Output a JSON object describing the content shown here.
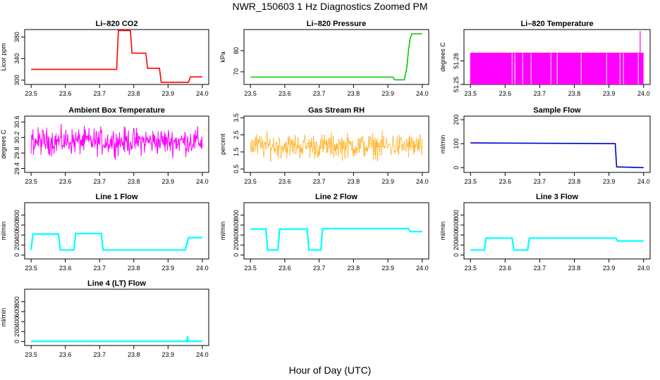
{
  "title": "NWR_150603  1 Hz Diagnostics Zoomed PM",
  "xlabel": "Hour of Day (UTC)",
  "colors": {
    "co2": "#ff0000",
    "pressure": "#00cc00",
    "temperature": "#ff00ff",
    "box_temp": "#ff00ff",
    "rh": "#ffa500",
    "sample_flow": "#0000cc",
    "line_flow": "#00ffff"
  },
  "chart_data": [
    {
      "type": "line",
      "title": "Li–820 CO2",
      "ylabel": "Licor ppm",
      "xlim": [
        23.5,
        24.0
      ],
      "xticks": [
        "23.5",
        "23.6",
        "23.7",
        "23.8",
        "23.9",
        "24.0"
      ],
      "ylim": [
        292,
        394
      ],
      "yticks": [
        300,
        340,
        380
      ],
      "color": "#ff0000",
      "x": [
        23.5,
        23.75,
        23.755,
        23.79,
        23.795,
        23.835,
        23.84,
        23.875,
        23.88,
        23.96,
        23.965,
        24.0
      ],
      "y": [
        320,
        320,
        392,
        392,
        350,
        350,
        322,
        322,
        296,
        296,
        306,
        306
      ]
    },
    {
      "type": "line",
      "title": "Li–820 Pressure",
      "ylabel": "kPa",
      "xlim": [
        23.5,
        24.0
      ],
      "xticks": [
        "23.5",
        "23.6",
        "23.7",
        "23.8",
        "23.9",
        "24.0"
      ],
      "ylim": [
        64,
        90
      ],
      "yticks": [
        70,
        80
      ],
      "color": "#00cc00",
      "x": [
        23.5,
        23.915,
        23.92,
        23.948,
        23.955,
        23.96,
        23.965,
        23.97,
        23.98,
        24.0
      ],
      "y": [
        67.5,
        67.5,
        66.2,
        66.2,
        72,
        80,
        86,
        88,
        88,
        88
      ]
    },
    {
      "type": "area",
      "title": "Li–820 Temperature",
      "ylabel": "degrees C",
      "xlim": [
        23.5,
        24.0
      ],
      "xticks": [
        "23.5",
        "23.6",
        "23.7",
        "23.8",
        "23.9",
        "24.0"
      ],
      "ylim": [
        51.25,
        51.32
      ],
      "yticks": [
        51.25,
        51.28
      ],
      "color": "#ff00ff",
      "band": [
        51.25,
        51.29
      ],
      "spike": {
        "x": 23.99,
        "y": 51.318
      }
    },
    {
      "type": "line",
      "title": "Ambient Box Temperature",
      "ylabel": "degrees C",
      "xlim": [
        23.5,
        24.0
      ],
      "xticks": [
        "23.5",
        "23.6",
        "23.7",
        "23.8",
        "23.9",
        "24.0"
      ],
      "ylim": [
        29.3,
        30.75
      ],
      "yticks": [
        29.4,
        29.8,
        30.2,
        30.6
      ],
      "color": "#ff00ff",
      "center": 30.1,
      "spread": 0.28
    },
    {
      "type": "line",
      "title": "Gas Stream RH",
      "ylabel": "percent",
      "xlim": [
        23.5,
        24.0
      ],
      "xticks": [
        "23.5",
        "23.6",
        "23.7",
        "23.8",
        "23.9",
        "24.0"
      ],
      "ylim": [
        0.3,
        3.6
      ],
      "yticks": [
        0.5,
        1.5,
        2.5,
        3.5
      ],
      "color": "#ffa500",
      "center": 1.85,
      "spread": 0.6
    },
    {
      "type": "line",
      "title": "Sample Flow",
      "ylabel": "ml/min",
      "xlim": [
        23.5,
        24.0
      ],
      "xticks": [
        "23.5",
        "23.6",
        "23.7",
        "23.8",
        "23.9",
        "24.0"
      ],
      "ylim": [
        -20,
        215
      ],
      "yticks": [
        0,
        100,
        200
      ],
      "color": "#0000cc",
      "x": [
        23.5,
        23.915,
        23.918,
        23.922,
        24.0
      ],
      "y": [
        103,
        100,
        100,
        3,
        0
      ]
    },
    {
      "type": "line",
      "title": "Line 1 Flow",
      "ylabel": "ml/min",
      "xlim": [
        23.5,
        24.0
      ],
      "xticks": [
        "23.5",
        "23.6",
        "23.7",
        "23.8",
        "23.9",
        "24.0"
      ],
      "ylim": [
        -80,
        1050
      ],
      "yticks": [
        0,
        200,
        400,
        600,
        800
      ],
      "color": "#00ffff",
      "x": [
        23.5,
        23.505,
        23.58,
        23.585,
        23.625,
        23.63,
        23.705,
        23.71,
        23.95,
        23.96,
        24.0
      ],
      "y": [
        100,
        420,
        420,
        100,
        100,
        430,
        430,
        100,
        100,
        350,
        350
      ]
    },
    {
      "type": "line",
      "title": "Line 2 Flow",
      "ylabel": "ml/min",
      "xlim": [
        23.5,
        24.0
      ],
      "xticks": [
        "23.5",
        "23.6",
        "23.7",
        "23.8",
        "23.9",
        "24.0"
      ],
      "ylim": [
        -80,
        1050
      ],
      "yticks": [
        0,
        200,
        400,
        600,
        800
      ],
      "color": "#00ffff",
      "x": [
        23.5,
        23.545,
        23.55,
        23.58,
        23.585,
        23.665,
        23.67,
        23.705,
        23.71,
        23.96,
        23.965,
        24.0
      ],
      "y": [
        520,
        520,
        100,
        100,
        520,
        520,
        100,
        100,
        530,
        530,
        470,
        470
      ]
    },
    {
      "type": "line",
      "title": "Line 3 Flow",
      "ylabel": "ml/min",
      "xlim": [
        23.5,
        24.0
      ],
      "xticks": [
        "23.5",
        "23.6",
        "23.7",
        "23.8",
        "23.9",
        "24.0"
      ],
      "ylim": [
        -80,
        1050
      ],
      "yticks": [
        0,
        200,
        400,
        600,
        800
      ],
      "color": "#00ffff",
      "x": [
        23.5,
        23.505,
        23.54,
        23.545,
        23.62,
        23.625,
        23.665,
        23.67,
        23.92,
        23.925,
        24.0
      ],
      "y": [
        100,
        100,
        100,
        340,
        340,
        100,
        100,
        340,
        340,
        280,
        280
      ]
    },
    {
      "type": "line",
      "title": "Line 4 (LT) Flow",
      "ylabel": "ml/min",
      "xlim": [
        23.5,
        24.0
      ],
      "xticks": [
        "23.5",
        "23.6",
        "23.7",
        "23.8",
        "23.9",
        "24.0"
      ],
      "ylim": [
        -80,
        1050
      ],
      "yticks": [
        0,
        200,
        400,
        600,
        800
      ],
      "color": "#00ffff",
      "x": [
        23.5,
        23.955,
        23.957,
        23.959,
        23.961,
        24.0
      ],
      "y": [
        5,
        5,
        110,
        5,
        5,
        5
      ]
    }
  ]
}
